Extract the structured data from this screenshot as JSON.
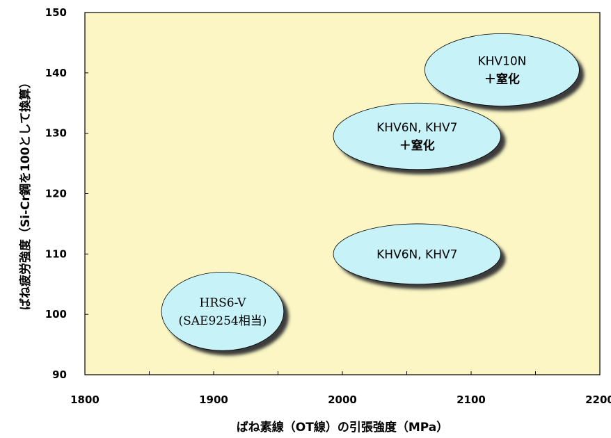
{
  "chart_data": {
    "type": "scatter",
    "title": "",
    "xlabel": "ばね素線（OT線）の引張強度（MPa）",
    "ylabel": "ばね疲労強度（Si-Cr鋼を100として換算）",
    "xlim": [
      1800,
      2200
    ],
    "ylim": [
      90,
      150
    ],
    "x_ticks": [
      "1800",
      "1900",
      "2000",
      "2100",
      "2200"
    ],
    "y_ticks": [
      "90",
      "100",
      "110",
      "120",
      "130",
      "140",
      "150"
    ],
    "grid": false,
    "regions": [
      {
        "lines": [
          "HRS6-V",
          "(SAE9254相当)"
        ],
        "x_range": [
          1860,
          1955
        ],
        "y_range": [
          94,
          107
        ],
        "center": [
          1907,
          100.5
        ]
      },
      {
        "lines": [
          "KHV6N, KHV7"
        ],
        "x_range": [
          1995,
          2125
        ],
        "y_range": [
          105,
          115
        ],
        "center": [
          2058,
          110
        ]
      },
      {
        "lines": [
          "KHV6N, KHV7",
          "＋窒化"
        ],
        "x_range": [
          1995,
          2125
        ],
        "y_range": [
          124,
          135
        ],
        "center": [
          2058,
          129.5
        ]
      },
      {
        "lines": [
          "KHV10N",
          "＋窒化"
        ],
        "x_range": [
          2065,
          2185
        ],
        "y_range": [
          134,
          146
        ],
        "center": [
          2124,
          140.5
        ]
      }
    ],
    "colors": {
      "plot_background": "#fbf6c4",
      "bubble_fill": "#c7f2f8",
      "bubble_shadow": "#3a3a3a",
      "bubble_stroke": "#000000"
    }
  }
}
